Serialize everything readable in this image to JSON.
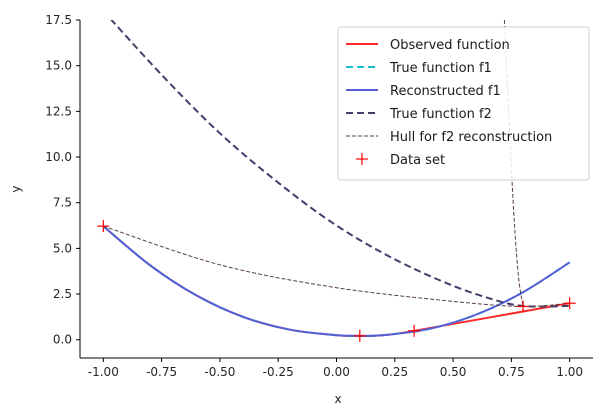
{
  "chart_data": {
    "type": "line",
    "xlabel": "x",
    "ylabel": "y",
    "xlim": [
      -1.1,
      1.1
    ],
    "ylim": [
      -1.0,
      17.5
    ],
    "xticks": [
      "-1.00",
      "-0.75",
      "-0.50",
      "-0.25",
      "0.00",
      "0.25",
      "0.50",
      "0.75",
      "1.00"
    ],
    "yticks": [
      "0.0",
      "2.5",
      "5.0",
      "7.5",
      "10.0",
      "12.5",
      "15.0",
      "17.5"
    ],
    "grid": false,
    "legend_placement": "top-right",
    "series": [
      {
        "name": "Observed function",
        "style": "solid",
        "color": "#ff2a2a",
        "x": [
          -1.0,
          -0.8,
          -0.6,
          -0.4,
          -0.2,
          0.0,
          0.1,
          0.2,
          0.333,
          1.0
        ],
        "y": [
          6.22,
          4.08,
          2.42,
          1.25,
          0.55,
          0.25,
          0.21,
          0.25,
          0.49,
          2.0
        ]
      },
      {
        "name": "True function f1",
        "style": "dashed",
        "color": "#17becf",
        "x": [
          -1.0,
          -0.8,
          -0.6,
          -0.4,
          -0.2,
          0.0,
          0.1,
          0.2,
          0.4,
          0.6,
          0.8,
          1.0
        ],
        "y": [
          6.22,
          4.08,
          2.42,
          1.25,
          0.55,
          0.25,
          0.21,
          0.25,
          0.6,
          1.38,
          2.6,
          4.24
        ]
      },
      {
        "name": "Reconstructed f1",
        "style": "solid",
        "color": "#5560d8",
        "x": [
          -1.0,
          -0.8,
          -0.6,
          -0.4,
          -0.2,
          0.0,
          0.1,
          0.2,
          0.4,
          0.6,
          0.8,
          1.0
        ],
        "y": [
          6.22,
          4.08,
          2.42,
          1.25,
          0.55,
          0.25,
          0.21,
          0.25,
          0.6,
          1.38,
          2.6,
          4.24
        ]
      },
      {
        "name": "True function f2",
        "style": "dashed",
        "color": "#473c6b",
        "x": [
          -1.0,
          -0.75,
          -0.5,
          -0.25,
          0.0,
          0.25,
          0.5,
          0.7,
          0.8,
          0.9,
          1.0
        ],
        "y": [
          18.0,
          14.5,
          11.3,
          8.6,
          6.25,
          4.4,
          2.95,
          2.1,
          1.85,
          1.82,
          1.85
        ]
      },
      {
        "name": "Hull for f2 reconstruction",
        "style": "dashed-thin",
        "color": "#5a4040",
        "x": [
          -1.0,
          -0.5,
          0.0,
          0.5,
          0.8,
          1.0
        ],
        "y": [
          6.22,
          4.1,
          2.85,
          2.1,
          1.82,
          2.0
        ]
      },
      {
        "name": "Hull for f2 reconstruction",
        "style": "dashed-thin",
        "color": "#5a4040",
        "x": [
          0.72,
          0.74,
          0.76,
          0.78,
          0.8
        ],
        "y": [
          17.5,
          12.0,
          7.0,
          3.5,
          1.82
        ]
      },
      {
        "name": "Data set",
        "style": "marker",
        "color": "#ff0000",
        "x": [
          -1.0,
          0.1,
          0.333,
          0.8,
          1.0
        ],
        "y": [
          6.22,
          0.21,
          0.49,
          1.82,
          2.0
        ]
      }
    ],
    "legend": [
      {
        "label": "Observed function",
        "style": "solid",
        "color": "#ff2a2a"
      },
      {
        "label": "True function f1",
        "style": "dashed",
        "color": "#17becf"
      },
      {
        "label": "Reconstructed f1",
        "style": "solid",
        "color": "#5560d8"
      },
      {
        "label": "True function f2",
        "style": "dashed",
        "color": "#473c6b"
      },
      {
        "label": "Hull for f2 reconstruction",
        "style": "dashed-thin",
        "color": "#5a4040"
      },
      {
        "label": "Data set",
        "style": "marker",
        "color": "#ff0000"
      }
    ]
  }
}
